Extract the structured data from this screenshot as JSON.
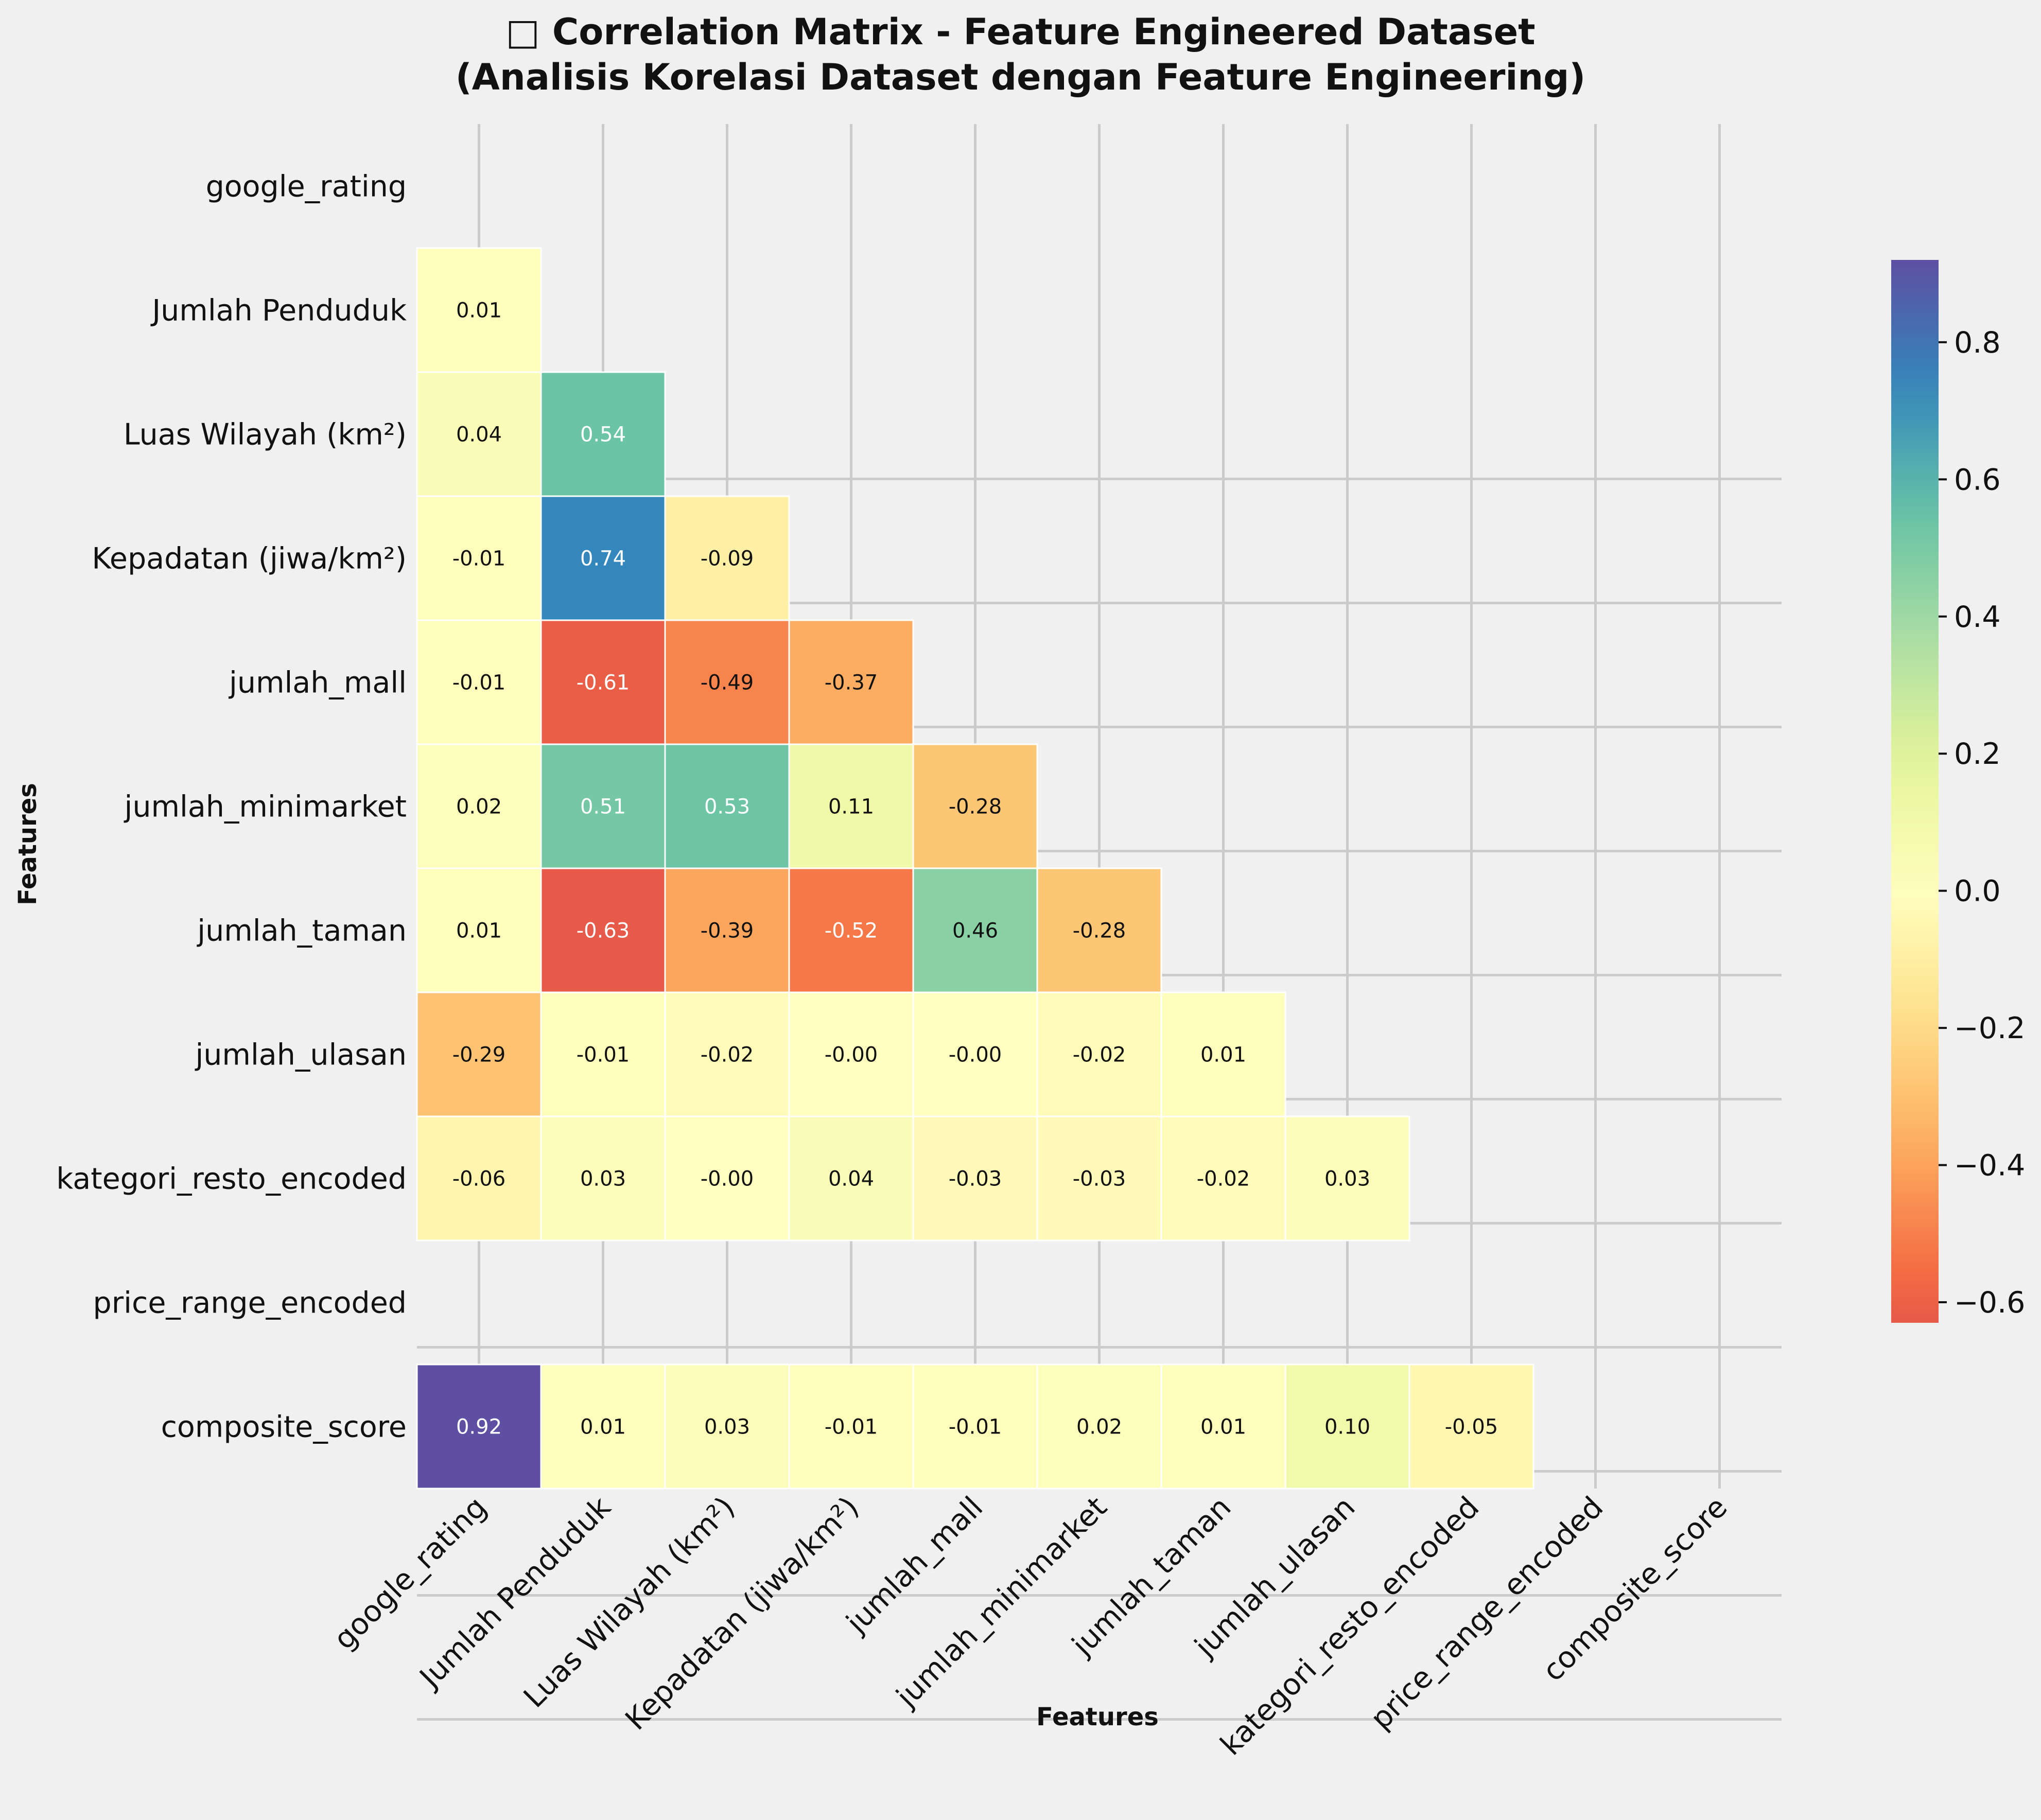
{
  "chart_data": {
    "type": "heatmap",
    "title_line1": "□ Correlation Matrix - Feature Engineered Dataset",
    "title_line2": "(Analisis Korelasi Dataset dengan Feature Engineering)",
    "xlabel": "Features",
    "ylabel": "Features",
    "features": [
      "google_rating",
      "Jumlah Penduduk",
      "Luas Wilayah (km²)",
      "Kepadatan (jiwa/km²)",
      "jumlah_mall",
      "jumlah_minimarket",
      "jumlah_taman",
      "jumlah_ulasan",
      "kategori_resto_encoded",
      "price_range_encoded",
      "composite_score"
    ],
    "mask": "upper triangle incl. diagonal; price_range_encoded row/column empty",
    "matrix": [
      [
        null,
        null,
        null,
        null,
        null,
        null,
        null,
        null,
        null,
        null,
        null
      ],
      [
        0.01,
        null,
        null,
        null,
        null,
        null,
        null,
        null,
        null,
        null,
        null
      ],
      [
        0.04,
        0.54,
        null,
        null,
        null,
        null,
        null,
        null,
        null,
        null,
        null
      ],
      [
        -0.01,
        0.74,
        -0.09,
        null,
        null,
        null,
        null,
        null,
        null,
        null,
        null
      ],
      [
        -0.01,
        -0.61,
        -0.49,
        -0.37,
        null,
        null,
        null,
        null,
        null,
        null,
        null
      ],
      [
        0.02,
        0.51,
        0.53,
        0.11,
        -0.28,
        null,
        null,
        null,
        null,
        null,
        null
      ],
      [
        0.01,
        -0.63,
        -0.39,
        -0.52,
        0.46,
        -0.28,
        null,
        null,
        null,
        null,
        null
      ],
      [
        -0.29,
        -0.01,
        -0.02,
        -0.0,
        -0.0,
        -0.02,
        0.01,
        null,
        null,
        null,
        null
      ],
      [
        -0.06,
        0.03,
        -0.0,
        0.04,
        -0.03,
        -0.03,
        -0.02,
        0.03,
        null,
        null,
        null
      ],
      [
        null,
        null,
        null,
        null,
        null,
        null,
        null,
        null,
        null,
        null,
        null
      ],
      [
        0.92,
        0.01,
        0.03,
        -0.01,
        -0.01,
        0.02,
        0.01,
        0.1,
        -0.05,
        null,
        null
      ]
    ],
    "value_labels": [
      [
        null,
        null,
        null,
        null,
        null,
        null,
        null,
        null,
        null,
        null,
        null
      ],
      [
        "0.01",
        null,
        null,
        null,
        null,
        null,
        null,
        null,
        null,
        null,
        null
      ],
      [
        "0.04",
        "0.54",
        null,
        null,
        null,
        null,
        null,
        null,
        null,
        null,
        null
      ],
      [
        "-0.01",
        "0.74",
        "-0.09",
        null,
        null,
        null,
        null,
        null,
        null,
        null,
        null
      ],
      [
        "-0.01",
        "-0.61",
        "-0.49",
        "-0.37",
        null,
        null,
        null,
        null,
        null,
        null,
        null
      ],
      [
        "0.02",
        "0.51",
        "0.53",
        "0.11",
        "-0.28",
        null,
        null,
        null,
        null,
        null,
        null
      ],
      [
        "0.01",
        "-0.63",
        "-0.39",
        "-0.52",
        "0.46",
        "-0.28",
        null,
        null,
        null,
        null,
        null
      ],
      [
        "-0.29",
        "-0.01",
        "-0.02",
        "-0.00",
        "-0.00",
        "-0.02",
        "0.01",
        null,
        null,
        null,
        null
      ],
      [
        "-0.06",
        "0.03",
        "-0.00",
        "0.04",
        "-0.03",
        "-0.03",
        "-0.02",
        "0.03",
        null,
        null,
        null
      ],
      [
        null,
        null,
        null,
        null,
        null,
        null,
        null,
        null,
        null,
        null,
        null
      ],
      [
        "0.92",
        "0.01",
        "0.03",
        "-0.01",
        "-0.01",
        "0.02",
        "0.01",
        "0.10",
        "-0.05",
        null,
        null
      ]
    ],
    "colormap": "Spectral",
    "vmin": -0.63,
    "vmax": 0.92,
    "colorbar_ticks": [
      0.8,
      0.6,
      0.4,
      0.2,
      0.0,
      -0.2,
      -0.4,
      -0.6
    ],
    "colorbar_tick_labels": [
      "0.8",
      "0.6",
      "0.4",
      "0.2",
      "0.0",
      "−0.2",
      "−0.4",
      "−0.6"
    ],
    "grid": true
  }
}
